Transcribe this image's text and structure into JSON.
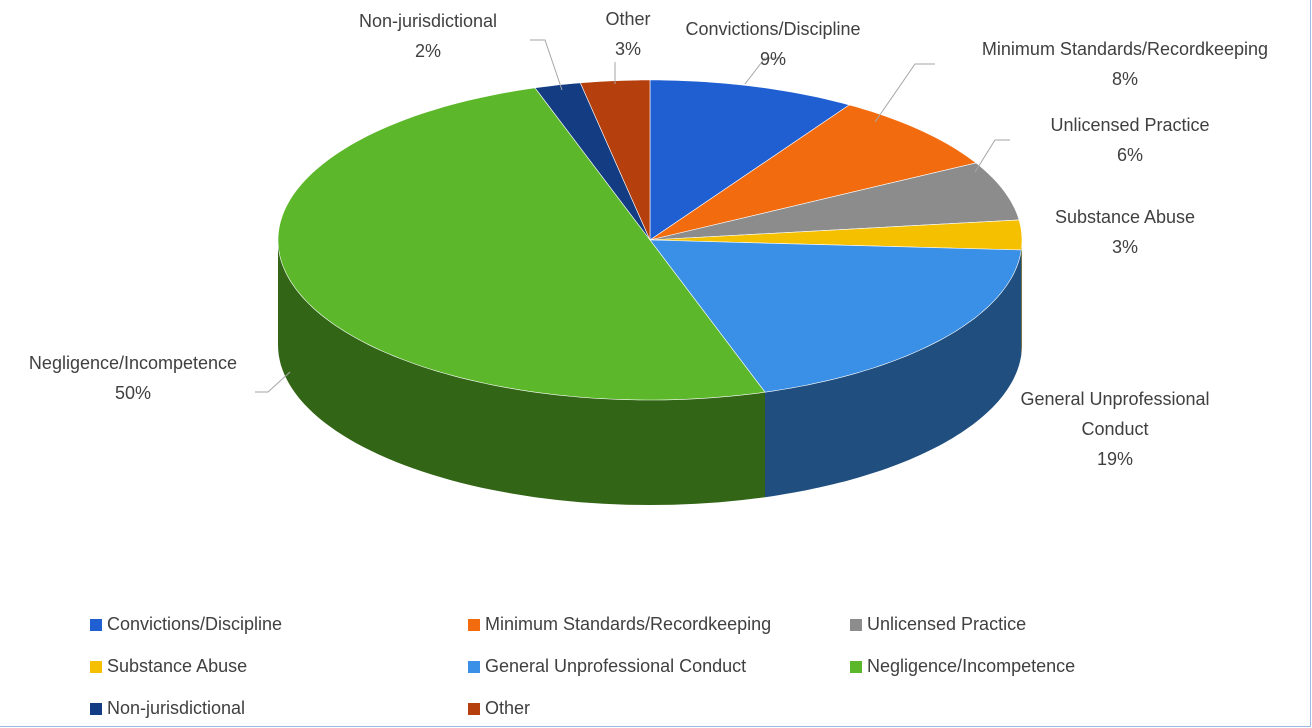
{
  "chart_data": {
    "type": "pie",
    "categories": [
      "Convictions/Discipline",
      "Minimum Standards/Recordkeeping",
      "Unlicensed Practice",
      "Substance Abuse",
      "General Unprofessional Conduct",
      "Negligence/Incompetence",
      "Non-jurisdictional",
      "Other"
    ],
    "values": [
      9,
      8,
      6,
      3,
      19,
      50,
      2,
      3
    ],
    "value_labels": [
      "9%",
      "8%",
      "6%",
      "3%",
      "19%",
      "50%",
      "2%",
      "3%"
    ],
    "colors": [
      "#1f5fd1",
      "#f26b0f",
      "#8c8c8c",
      "#f5c000",
      "#3a8fe6",
      "#5cb82a",
      "#143c82",
      "#b5400e"
    ],
    "legend": "bottom"
  }
}
